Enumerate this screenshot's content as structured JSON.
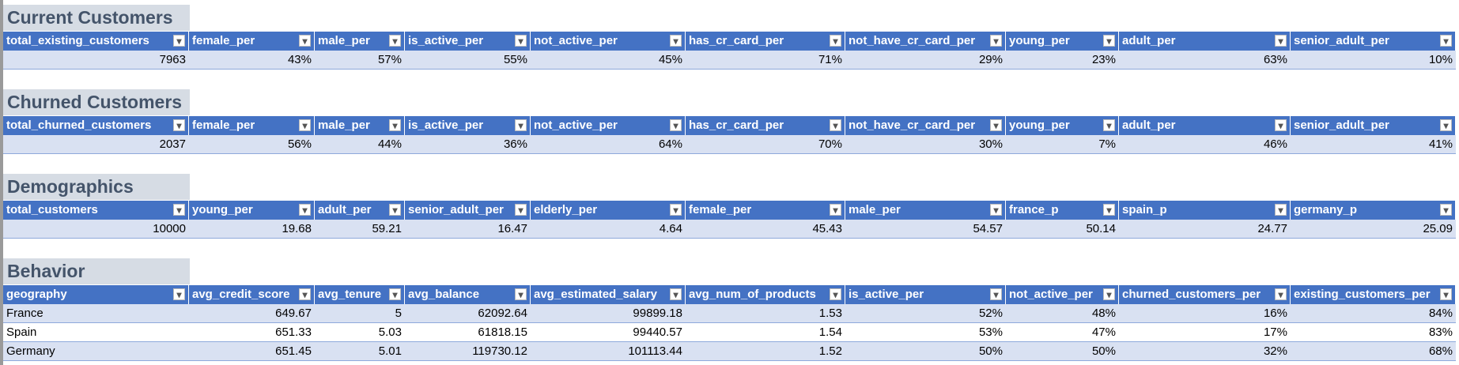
{
  "sections": [
    {
      "title": "Current Customers",
      "columns": [
        "total_existing_customers",
        "female_per",
        "male_per",
        "is_active_per",
        "not_active_per",
        "has_cr_card_per",
        "not_have_cr_card_per",
        "young_per",
        "adult_per",
        "senior_adult_per"
      ],
      "rows": [
        [
          "7963",
          "43%",
          "57%",
          "55%",
          "45%",
          "71%",
          "29%",
          "23%",
          "63%",
          "10%"
        ]
      ]
    },
    {
      "title": "Churned Customers",
      "columns": [
        "total_churned_customers",
        "female_per",
        "male_per",
        "is_active_per",
        "not_active_per",
        "has_cr_card_per",
        "not_have_cr_card_per",
        "young_per",
        "adult_per",
        "senior_adult_per"
      ],
      "rows": [
        [
          "2037",
          "56%",
          "44%",
          "36%",
          "64%",
          "70%",
          "30%",
          "7%",
          "46%",
          "41%"
        ]
      ]
    },
    {
      "title": "Demographics",
      "columns": [
        "total_customers",
        "young_per",
        "adult_per",
        "senior_adult_per",
        "elderly_per",
        "female_per",
        "male_per",
        "france_p",
        "spain_p",
        "germany_p"
      ],
      "rows": [
        [
          "10000",
          "19.68",
          "59.21",
          "16.47",
          "4.64",
          "45.43",
          "54.57",
          "50.14",
          "24.77",
          "25.09"
        ]
      ]
    },
    {
      "title": "Behavior",
      "columns": [
        "geography",
        "avg_credit_score",
        "avg_tenure",
        "avg_balance",
        "avg_estimated_salary",
        "avg_num_of_products",
        "is_active_per",
        "not_active_per",
        "churned_customers_per",
        "existing_customers_per"
      ],
      "rows": [
        [
          "France",
          "649.67",
          "5",
          "62092.64",
          "99899.18",
          "1.53",
          "52%",
          "48%",
          "16%",
          "84%"
        ],
        [
          "Spain",
          "651.33",
          "5.03",
          "61818.15",
          "99440.57",
          "1.54",
          "53%",
          "47%",
          "17%",
          "83%"
        ],
        [
          "Germany",
          "651.45",
          "5.01",
          "119730.12",
          "101113.44",
          "1.52",
          "50%",
          "50%",
          "32%",
          "68%"
        ]
      ]
    }
  ]
}
